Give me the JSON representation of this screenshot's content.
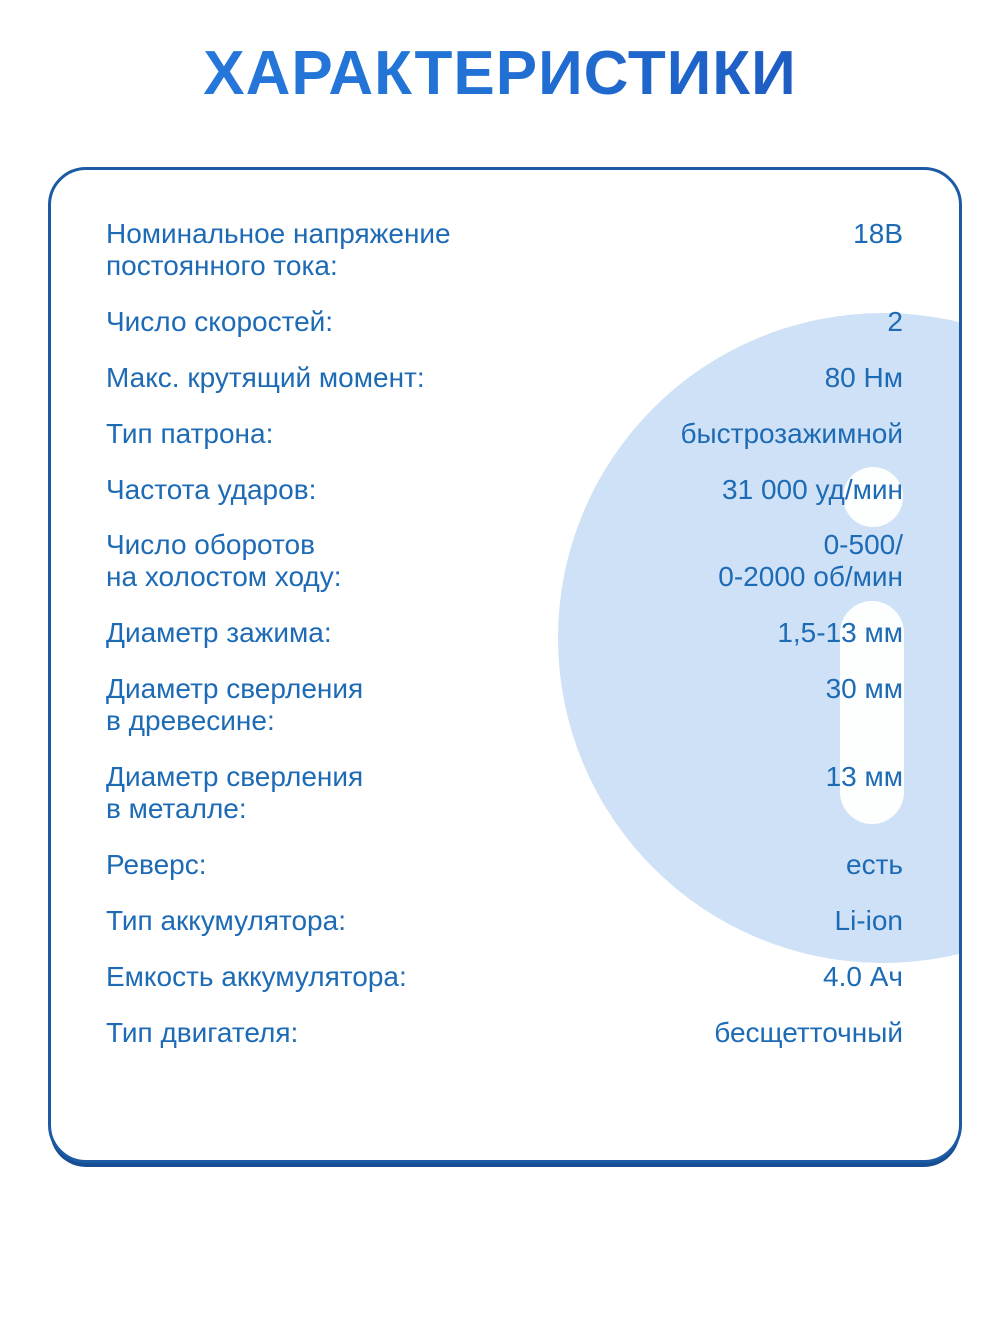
{
  "title": "ХАРАКТЕРИСТИКИ",
  "colors": {
    "title_gradient_start": "#2a7ade",
    "title_gradient_end": "#1a4fb8",
    "text_blue": "#1d6ab5",
    "card_border": "#1d5aa4",
    "card_bottom_shadow": "#174d92",
    "decor_circle_fill": "#cfe1f6",
    "decor_inner_fill": "#fdfefe"
  },
  "specs": {
    "rows": [
      {
        "label_lines": [
          "Номинальное напряжение",
          "постоянного тока:"
        ],
        "value_lines": [
          "18В"
        ]
      },
      {
        "label_lines": [
          "Число скоростей:"
        ],
        "value_lines": [
          "2"
        ]
      },
      {
        "label_lines": [
          "Макс. крутящий момент:"
        ],
        "value_lines": [
          "80 Нм"
        ]
      },
      {
        "label_lines": [
          "Тип патрона:"
        ],
        "value_lines": [
          "быстрозажимной"
        ]
      },
      {
        "label_lines": [
          "Частота ударов:"
        ],
        "value_lines": [
          "31 000 уд/мин"
        ]
      },
      {
        "label_lines": [
          "Число оборотов",
          "на холостом ходу:"
        ],
        "value_lines": [
          "0-500/",
          "0-2000 об/мин"
        ]
      },
      {
        "label_lines": [
          "Диаметр зажима:"
        ],
        "value_lines": [
          "1,5-13 мм"
        ]
      },
      {
        "label_lines": [
          "Диаметр сверления",
          "в древесине:"
        ],
        "value_lines": [
          "30 мм"
        ]
      },
      {
        "label_lines": [
          "Диаметр сверления",
          "в металле:"
        ],
        "value_lines": [
          "13 мм"
        ]
      },
      {
        "label_lines": [
          "Реверс:"
        ],
        "value_lines": [
          "есть"
        ]
      },
      {
        "label_lines": [
          "Тип аккумулятора:"
        ],
        "value_lines": [
          "Li-ion"
        ]
      },
      {
        "label_lines": [
          "Емкость аккумулятора:"
        ],
        "value_lines": [
          "4.0 Ач"
        ]
      },
      {
        "label_lines": [
          "Тип двигателя:"
        ],
        "value_lines": [
          "бесщетточный"
        ]
      }
    ]
  }
}
